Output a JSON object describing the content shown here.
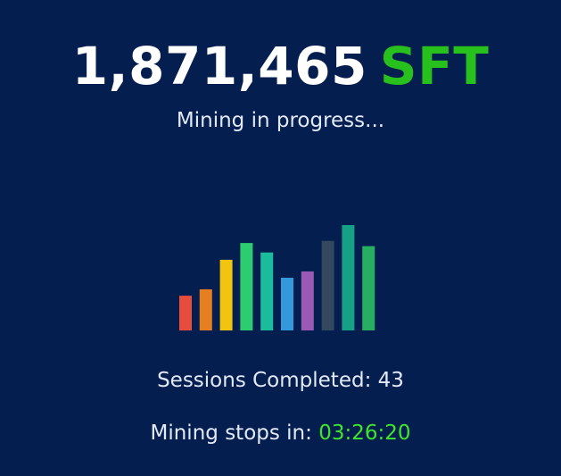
{
  "balance": {
    "amount": "1,871,465",
    "unit": "SFT",
    "unit_color": "#27c01d"
  },
  "status": {
    "text": "Mining in progress..."
  },
  "activity_chart": {
    "relative_levels": [
      0.33,
      0.39,
      0.67,
      0.83,
      0.74,
      0.5,
      0.56,
      0.85,
      1.0,
      0.8
    ],
    "colors": [
      "#e74c3c",
      "#e67e22",
      "#f1c40f",
      "#2ecc71",
      "#1abc9c",
      "#3498db",
      "#9b59b6",
      "#34495e",
      "#16a085",
      "#27ae60"
    ]
  },
  "sessions": {
    "label": "Sessions Completed:",
    "count": "43"
  },
  "countdown": {
    "label": "Mining stops in:",
    "value": "03:26:20",
    "value_color": "#3ee62c"
  }
}
